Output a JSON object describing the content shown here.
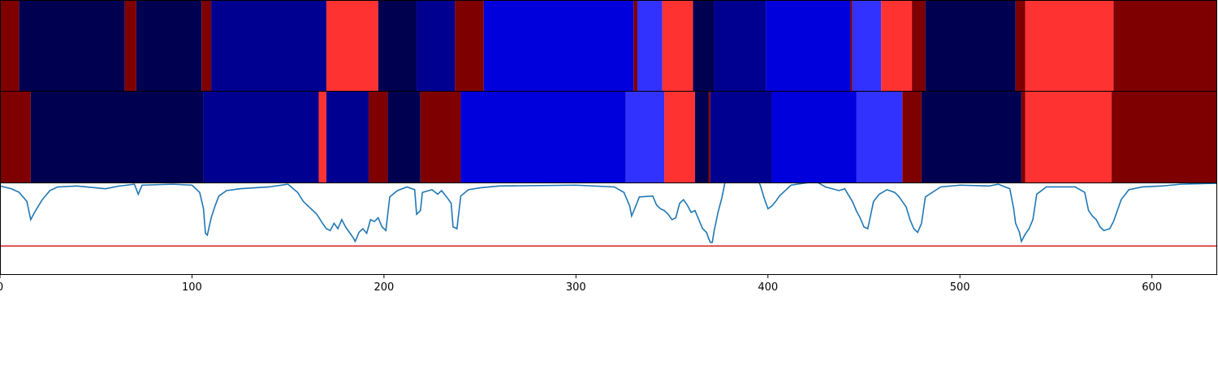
{
  "palette": {
    "0": "#000050",
    "1": "#000090",
    "2": "#0000dc",
    "3": "#3232ff",
    "4": "#ff3232",
    "5": "#7f0000"
  },
  "line_color": "#1f77b4",
  "threshold_color": "#d62728",
  "chart_data": [
    {
      "type": "heatmap",
      "panel": "segmentation-top",
      "xlim": [
        0,
        634
      ],
      "segments": [
        {
          "start": 0,
          "end": 10,
          "state": 5
        },
        {
          "start": 10,
          "end": 65,
          "state": 0
        },
        {
          "start": 65,
          "end": 71,
          "state": 5
        },
        {
          "start": 71,
          "end": 105,
          "state": 0
        },
        {
          "start": 105,
          "end": 110,
          "state": 5
        },
        {
          "start": 110,
          "end": 170,
          "state": 1
        },
        {
          "start": 170,
          "end": 197,
          "state": 4
        },
        {
          "start": 197,
          "end": 217,
          "state": 0
        },
        {
          "start": 217,
          "end": 237,
          "state": 1
        },
        {
          "start": 237,
          "end": 252,
          "state": 5
        },
        {
          "start": 252,
          "end": 330,
          "state": 2
        },
        {
          "start": 330,
          "end": 332,
          "state": 5
        },
        {
          "start": 332,
          "end": 345,
          "state": 3
        },
        {
          "start": 345,
          "end": 361,
          "state": 4
        },
        {
          "start": 361,
          "end": 372,
          "state": 0
        },
        {
          "start": 372,
          "end": 399,
          "state": 1
        },
        {
          "start": 399,
          "end": 443,
          "state": 2
        },
        {
          "start": 443,
          "end": 444,
          "state": 5
        },
        {
          "start": 444,
          "end": 459,
          "state": 3
        },
        {
          "start": 459,
          "end": 475,
          "state": 4
        },
        {
          "start": 475,
          "end": 482,
          "state": 5
        },
        {
          "start": 482,
          "end": 529,
          "state": 0
        },
        {
          "start": 529,
          "end": 534,
          "state": 5
        },
        {
          "start": 534,
          "end": 580,
          "state": 4
        },
        {
          "start": 580,
          "end": 634,
          "state": 5
        }
      ]
    },
    {
      "type": "heatmap",
      "panel": "segmentation-bottom",
      "xlim": [
        0,
        634
      ],
      "segments": [
        {
          "start": 0,
          "end": 16,
          "state": 5
        },
        {
          "start": 16,
          "end": 106,
          "state": 0
        },
        {
          "start": 106,
          "end": 166,
          "state": 1
        },
        {
          "start": 166,
          "end": 170,
          "state": 4
        },
        {
          "start": 170,
          "end": 192,
          "state": 1
        },
        {
          "start": 192,
          "end": 202,
          "state": 5
        },
        {
          "start": 202,
          "end": 219,
          "state": 0
        },
        {
          "start": 219,
          "end": 240,
          "state": 5
        },
        {
          "start": 240,
          "end": 326,
          "state": 2
        },
        {
          "start": 326,
          "end": 346,
          "state": 3
        },
        {
          "start": 346,
          "end": 362,
          "state": 4
        },
        {
          "start": 362,
          "end": 369,
          "state": 0
        },
        {
          "start": 369,
          "end": 370,
          "state": 5
        },
        {
          "start": 370,
          "end": 402,
          "state": 1
        },
        {
          "start": 402,
          "end": 446,
          "state": 2
        },
        {
          "start": 446,
          "end": 470,
          "state": 3
        },
        {
          "start": 470,
          "end": 480,
          "state": 5
        },
        {
          "start": 480,
          "end": 532,
          "state": 0
        },
        {
          "start": 532,
          "end": 534,
          "state": 5
        },
        {
          "start": 534,
          "end": 579,
          "state": 4
        },
        {
          "start": 579,
          "end": 634,
          "state": 5
        }
      ]
    },
    {
      "type": "line",
      "panel": "signal",
      "xlim": [
        0,
        634
      ],
      "ylim": [
        0,
        1
      ],
      "x_ticks": [
        0,
        100,
        200,
        300,
        400,
        500,
        600
      ],
      "x_tick_labels": [
        "0",
        "100",
        "200",
        "300",
        "400",
        "500",
        "600"
      ],
      "threshold": 0.31,
      "series": [
        {
          "points": [
            [
              0,
              0.97
            ],
            [
              6,
              0.94
            ],
            [
              10,
              0.9
            ],
            [
              14,
              0.8
            ],
            [
              16,
              0.6
            ],
            [
              18,
              0.68
            ],
            [
              22,
              0.82
            ],
            [
              26,
              0.92
            ],
            [
              30,
              0.96
            ],
            [
              40,
              0.97
            ],
            [
              50,
              0.95
            ],
            [
              55,
              0.94
            ],
            [
              62,
              0.97
            ],
            [
              70,
              0.99
            ],
            [
              72,
              0.88
            ],
            [
              74,
              0.98
            ],
            [
              90,
              0.99
            ],
            [
              100,
              0.98
            ],
            [
              104,
              0.9
            ],
            [
              106,
              0.72
            ],
            [
              107,
              0.45
            ],
            [
              108,
              0.43
            ],
            [
              110,
              0.62
            ],
            [
              112,
              0.75
            ],
            [
              114,
              0.86
            ],
            [
              118,
              0.92
            ],
            [
              125,
              0.94
            ],
            [
              140,
              0.96
            ],
            [
              150,
              0.99
            ],
            [
              155,
              0.9
            ],
            [
              158,
              0.8
            ],
            [
              162,
              0.72
            ],
            [
              165,
              0.66
            ],
            [
              168,
              0.56
            ],
            [
              170,
              0.5
            ],
            [
              172,
              0.48
            ],
            [
              174,
              0.56
            ],
            [
              176,
              0.5
            ],
            [
              178,
              0.6
            ],
            [
              180,
              0.52
            ],
            [
              182,
              0.46
            ],
            [
              184,
              0.4
            ],
            [
              185,
              0.36
            ],
            [
              187,
              0.46
            ],
            [
              189,
              0.5
            ],
            [
              191,
              0.45
            ],
            [
              193,
              0.6
            ],
            [
              195,
              0.58
            ],
            [
              197,
              0.62
            ],
            [
              199,
              0.52
            ],
            [
              201,
              0.48
            ],
            [
              203,
              0.85
            ],
            [
              207,
              0.92
            ],
            [
              212,
              0.96
            ],
            [
              216,
              0.93
            ],
            [
              217,
              0.66
            ],
            [
              219,
              0.7
            ],
            [
              220,
              0.9
            ],
            [
              225,
              0.93
            ],
            [
              228,
              0.88
            ],
            [
              230,
              0.92
            ],
            [
              233,
              0.84
            ],
            [
              235,
              0.78
            ],
            [
              236,
              0.52
            ],
            [
              238,
              0.5
            ],
            [
              240,
              0.86
            ],
            [
              244,
              0.93
            ],
            [
              250,
              0.95
            ],
            [
              260,
              0.97
            ],
            [
              300,
              0.98
            ],
            [
              320,
              0.96
            ],
            [
              325,
              0.9
            ],
            [
              327,
              0.8
            ],
            [
              328,
              0.75
            ],
            [
              329,
              0.64
            ],
            [
              331,
              0.74
            ],
            [
              333,
              0.85
            ],
            [
              340,
              0.86
            ],
            [
              342,
              0.76
            ],
            [
              344,
              0.72
            ],
            [
              346,
              0.7
            ],
            [
              348,
              0.66
            ],
            [
              350,
              0.6
            ],
            [
              352,
              0.62
            ],
            [
              354,
              0.78
            ],
            [
              356,
              0.82
            ],
            [
              358,
              0.76
            ],
            [
              360,
              0.68
            ],
            [
              362,
              0.7
            ],
            [
              364,
              0.6
            ],
            [
              366,
              0.5
            ],
            [
              368,
              0.46
            ],
            [
              369,
              0.4
            ],
            [
              370,
              0.35
            ],
            [
              371,
              0.35
            ],
            [
              372,
              0.48
            ],
            [
              374,
              0.68
            ],
            [
              376,
              0.84
            ],
            [
              378,
              1.05
            ],
            [
              395,
              1.02
            ],
            [
              396,
              0.98
            ],
            [
              398,
              0.84
            ],
            [
              400,
              0.72
            ],
            [
              402,
              0.75
            ],
            [
              404,
              0.8
            ],
            [
              406,
              0.86
            ],
            [
              408,
              0.9
            ],
            [
              412,
              0.98
            ],
            [
              425,
              1.02
            ],
            [
              430,
              0.96
            ],
            [
              437,
              0.92
            ],
            [
              440,
              0.94
            ],
            [
              444,
              0.8
            ],
            [
              446,
              0.7
            ],
            [
              448,
              0.62
            ],
            [
              450,
              0.52
            ],
            [
              452,
              0.5
            ],
            [
              455,
              0.8
            ],
            [
              458,
              0.88
            ],
            [
              462,
              0.93
            ],
            [
              466,
              0.9
            ],
            [
              468,
              0.86
            ],
            [
              470,
              0.8
            ],
            [
              472,
              0.74
            ],
            [
              474,
              0.6
            ],
            [
              476,
              0.5
            ],
            [
              478,
              0.46
            ],
            [
              480,
              0.56
            ],
            [
              482,
              0.85
            ],
            [
              490,
              0.96
            ],
            [
              500,
              0.98
            ],
            [
              515,
              0.97
            ],
            [
              520,
              0.99
            ],
            [
              526,
              0.94
            ],
            [
              528,
              0.72
            ],
            [
              529,
              0.56
            ],
            [
              531,
              0.46
            ],
            [
              532,
              0.36
            ],
            [
              534,
              0.44
            ],
            [
              536,
              0.5
            ],
            [
              538,
              0.6
            ],
            [
              540,
              0.88
            ],
            [
              545,
              0.96
            ],
            [
              560,
              0.96
            ],
            [
              565,
              0.9
            ],
            [
              567,
              0.7
            ],
            [
              569,
              0.64
            ],
            [
              571,
              0.6
            ],
            [
              573,
              0.52
            ],
            [
              575,
              0.48
            ],
            [
              578,
              0.5
            ],
            [
              580,
              0.58
            ],
            [
              584,
              0.82
            ],
            [
              588,
              0.93
            ],
            [
              595,
              0.96
            ],
            [
              605,
              0.97
            ],
            [
              615,
              0.99
            ],
            [
              634,
              1.0
            ]
          ]
        }
      ]
    }
  ]
}
